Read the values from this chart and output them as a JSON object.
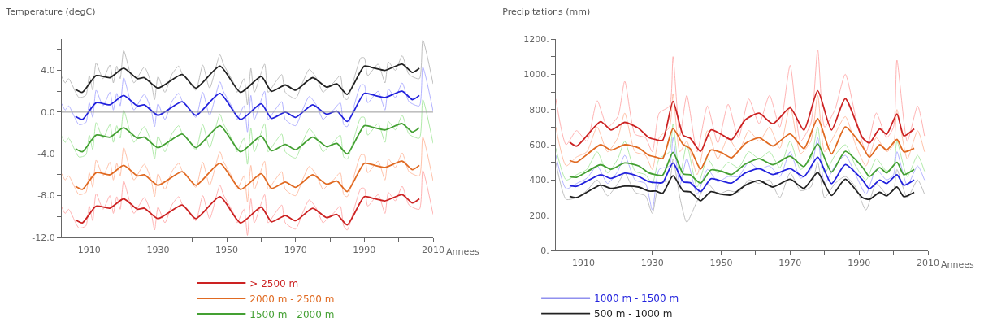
{
  "chart_data": [
    {
      "type": "line",
      "title": "Temperature (degC)",
      "xlabel": "Annees",
      "xlim": [
        1902,
        2010
      ],
      "ylim": [
        -12,
        7
      ],
      "xticks": [
        1910,
        {
          "value": 1920,
          "label": null
        },
        1930,
        {
          "value": 1940,
          "label": null
        },
        1950,
        {
          "value": 1960,
          "label": null
        },
        1970,
        {
          "value": 1980,
          "label": null
        },
        1990,
        {
          "value": 2000,
          "label": null
        },
        2010
      ],
      "yticks": [
        {
          "value": -12,
          "label": "-12.0"
        },
        {
          "value": -10,
          "label": null
        },
        {
          "value": -8,
          "label": "-8.0"
        },
        {
          "value": -6,
          "label": null
        },
        {
          "value": -4,
          "label": "-4.0"
        },
        {
          "value": -2,
          "label": null
        },
        {
          "value": 0,
          "label": "0.0"
        },
        {
          "value": 2,
          "label": null
        },
        {
          "value": 4,
          "label": "4.0"
        },
        {
          "value": 6,
          "label": null
        }
      ],
      "legend": "bottom",
      "ref_lines": [
        {
          "axis": "y",
          "value": 0,
          "color": "#999999"
        }
      ],
      "x": [
        1902,
        1903,
        1904,
        1907,
        1909,
        1910,
        1911,
        1912,
        1914,
        1916,
        1917,
        1918,
        1919,
        1920,
        1922,
        1923,
        1926,
        1928,
        1929,
        1930,
        1932,
        1934,
        1936,
        1937,
        1939,
        1941,
        1943,
        1945,
        1948,
        1949,
        1952,
        1953,
        1955,
        1956,
        1957,
        1958,
        1961,
        1962,
        1964,
        1966,
        1967,
        1970,
        1972,
        1974,
        1976,
        1978,
        1979,
        1981,
        1983,
        1984,
        1985,
        1989,
        1990,
        1991,
        1994,
        1996,
        1997,
        1999,
        2001,
        2003,
        2006,
        2007,
        2010
      ],
      "series": [
        {
          "color": "#b8b8b8",
          "values": [
            3.4,
            2.8,
            3.2,
            1.4,
            1.6,
            3.5,
            2.1,
            4.7,
            3.2,
            4.5,
            2.8,
            4.4,
            3.2,
            5.9,
            3.6,
            2.8,
            4.3,
            2.8,
            1.2,
            3.4,
            1.9,
            3.6,
            4.4,
            3.7,
            2.9,
            2.1,
            4.5,
            2.3,
            5.5,
            4.6,
            2.8,
            1.9,
            3.2,
            0.7,
            4.2,
            1.9,
            4.6,
            1.9,
            2.8,
            3.6,
            1.9,
            1.3,
            2.8,
            4.1,
            3.3,
            1.9,
            2.2,
            2.8,
            3.5,
            1.4,
            1.2,
            5.2,
            5.2,
            3.5,
            4.6,
            2.8,
            4.8,
            4.0,
            5.4,
            3.6,
            3.2,
            6.9,
            2.7
          ]
        },
        {
          "color": "#aaaaff",
          "values": [
            0.8,
            0.2,
            0.6,
            -1.2,
            -1.0,
            0.9,
            -0.5,
            2.1,
            0.6,
            1.9,
            0.2,
            1.8,
            0.6,
            3.3,
            1.0,
            0.2,
            1.7,
            0.2,
            -1.4,
            0.8,
            -0.7,
            1.0,
            1.8,
            1.1,
            0.3,
            -0.5,
            1.9,
            -0.3,
            2.9,
            2.0,
            0.2,
            -0.7,
            0.6,
            -1.9,
            1.6,
            -0.7,
            2.0,
            -0.7,
            0.2,
            1.0,
            -0.7,
            -1.3,
            0.2,
            1.5,
            0.7,
            -0.7,
            -0.4,
            0.2,
            0.9,
            -1.2,
            -1.4,
            2.6,
            2.6,
            0.9,
            2.0,
            0.2,
            2.2,
            1.4,
            2.8,
            1.0,
            0.6,
            4.3,
            0.1
          ]
        },
        {
          "color": "#a8e8a0",
          "values": [
            -2.3,
            -2.9,
            -2.5,
            -4.3,
            -4.1,
            -2.2,
            -3.6,
            -1.0,
            -2.5,
            -1.2,
            -2.9,
            -1.3,
            -2.5,
            0.2,
            -2.1,
            -2.9,
            -1.4,
            -2.9,
            -4.5,
            -2.3,
            -3.8,
            -2.1,
            -1.3,
            -2.0,
            -2.8,
            -3.6,
            -1.2,
            -3.4,
            -0.2,
            -1.1,
            -2.9,
            -3.8,
            -2.5,
            -5.0,
            -1.5,
            -3.8,
            -1.1,
            -3.8,
            -2.9,
            -2.1,
            -3.8,
            -4.4,
            -2.9,
            -1.6,
            -2.4,
            -3.8,
            -3.5,
            -2.9,
            -2.2,
            -4.3,
            -4.5,
            -0.5,
            -0.5,
            -2.2,
            -1.1,
            -2.9,
            -0.9,
            -1.7,
            -0.3,
            -2.1,
            -2.5,
            1.2,
            -3.0
          ]
        },
        {
          "color": "#ffbba0",
          "values": [
            -5.9,
            -6.5,
            -6.1,
            -7.9,
            -7.7,
            -5.8,
            -7.2,
            -4.6,
            -6.1,
            -4.8,
            -6.5,
            -4.9,
            -6.1,
            -3.4,
            -5.7,
            -6.5,
            -5.0,
            -6.5,
            -8.1,
            -5.9,
            -7.4,
            -5.7,
            -4.9,
            -5.6,
            -6.4,
            -7.2,
            -4.8,
            -7.0,
            -3.8,
            -4.7,
            -6.5,
            -7.4,
            -6.1,
            -8.6,
            -5.1,
            -7.4,
            -4.7,
            -7.4,
            -6.5,
            -5.7,
            -7.4,
            -8.0,
            -6.5,
            -5.2,
            -6.0,
            -7.4,
            -7.1,
            -6.5,
            -5.8,
            -7.9,
            -8.1,
            -4.1,
            -4.1,
            -5.8,
            -4.7,
            -6.5,
            -4.5,
            -5.3,
            -3.9,
            -5.7,
            -6.1,
            -2.4,
            -6.6
          ]
        },
        {
          "color": "#ffaaaa",
          "values": [
            -9.1,
            -9.7,
            -9.3,
            -11.1,
            -10.9,
            -9.0,
            -10.4,
            -7.8,
            -9.3,
            -8.0,
            -9.7,
            -8.1,
            -9.3,
            -6.6,
            -8.9,
            -9.7,
            -8.2,
            -9.7,
            -11.3,
            -9.1,
            -10.6,
            -8.9,
            -8.1,
            -8.8,
            -9.6,
            -10.4,
            -8.0,
            -10.2,
            -7.0,
            -7.9,
            -9.7,
            -10.6,
            -9.3,
            -11.8,
            -8.3,
            -10.6,
            -7.9,
            -10.6,
            -9.7,
            -8.9,
            -10.6,
            -11.2,
            -9.7,
            -8.4,
            -9.2,
            -10.6,
            -10.3,
            -9.7,
            -9.0,
            -10.9,
            -11.3,
            -7.3,
            -7.3,
            -9.0,
            -7.9,
            -9.7,
            -7.7,
            -8.5,
            -7.1,
            -8.9,
            -9.3,
            -5.6,
            -9.8
          ]
        },
        {
          "name": "> 2500 m",
          "color": "#cc2222",
          "x": [
            1906,
            1908,
            1912,
            1916,
            1920,
            1924,
            1926,
            1930,
            1937,
            1941,
            1948,
            1954,
            1960,
            1963,
            1967,
            1970,
            1975,
            1979,
            1982,
            1985,
            1990,
            1993,
            1996,
            2001,
            2004,
            2006
          ],
          "values": [
            -10.3,
            -10.6,
            -9.0,
            -9.2,
            -8.3,
            -9.3,
            -9.2,
            -10.2,
            -8.9,
            -10.2,
            -8.1,
            -10.6,
            -9.1,
            -10.5,
            -9.9,
            -10.4,
            -9.2,
            -10.1,
            -9.8,
            -10.8,
            -8.1,
            -8.3,
            -8.5,
            -7.9,
            -8.7,
            -8.3
          ]
        },
        {
          "name": "2000 m - 2500 m",
          "color": "#e06a22",
          "x": [
            1906,
            1908,
            1912,
            1916,
            1920,
            1924,
            1926,
            1930,
            1937,
            1941,
            1948,
            1954,
            1960,
            1963,
            1967,
            1970,
            1975,
            1979,
            1982,
            1985,
            1990,
            1993,
            1996,
            2001,
            2004,
            2006
          ],
          "values": [
            -7.1,
            -7.4,
            -5.8,
            -6.0,
            -5.1,
            -6.1,
            -6.0,
            -7.0,
            -5.7,
            -7.0,
            -4.9,
            -7.4,
            -5.9,
            -7.3,
            -6.7,
            -7.2,
            -6.0,
            -6.9,
            -6.6,
            -7.6,
            -4.9,
            -5.1,
            -5.3,
            -4.7,
            -5.5,
            -5.1
          ]
        },
        {
          "name": "1500 m - 2000 m",
          "color": "#44a033",
          "x": [
            1906,
            1908,
            1912,
            1916,
            1920,
            1924,
            1926,
            1930,
            1937,
            1941,
            1948,
            1954,
            1960,
            1963,
            1967,
            1970,
            1975,
            1979,
            1982,
            1985,
            1990,
            1993,
            1996,
            2001,
            2004,
            2006
          ],
          "values": [
            -3.5,
            -3.8,
            -2.2,
            -2.4,
            -1.5,
            -2.5,
            -2.4,
            -3.4,
            -2.1,
            -3.4,
            -1.3,
            -3.8,
            -2.3,
            -3.7,
            -3.1,
            -3.6,
            -2.4,
            -3.3,
            -3.0,
            -4.0,
            -1.3,
            -1.5,
            -1.7,
            -1.1,
            -1.9,
            -1.5
          ]
        },
        {
          "color": "#2222dd",
          "x": [
            1906,
            1908,
            1912,
            1916,
            1920,
            1924,
            1926,
            1930,
            1937,
            1941,
            1948,
            1954,
            1960,
            1963,
            1967,
            1970,
            1975,
            1979,
            1982,
            1985,
            1990,
            1993,
            1996,
            2001,
            2004,
            2006
          ],
          "values": [
            -0.4,
            -0.7,
            0.9,
            0.7,
            1.6,
            0.6,
            0.7,
            -0.3,
            1.0,
            -0.3,
            1.8,
            -0.7,
            0.8,
            -0.6,
            0.0,
            -0.5,
            0.7,
            -0.2,
            0.1,
            -0.9,
            1.8,
            1.6,
            1.4,
            2.0,
            1.2,
            1.6
          ]
        },
        {
          "color": "#222222",
          "x": [
            1906,
            1908,
            1912,
            1916,
            1920,
            1924,
            1926,
            1930,
            1937,
            1941,
            1948,
            1954,
            1960,
            1963,
            1967,
            1970,
            1975,
            1979,
            1982,
            1985,
            1990,
            1993,
            1996,
            2001,
            2004,
            2006
          ],
          "values": [
            2.2,
            1.9,
            3.5,
            3.3,
            4.2,
            3.2,
            3.3,
            2.3,
            3.6,
            2.3,
            4.4,
            1.9,
            3.4,
            2.0,
            2.6,
            2.1,
            3.3,
            2.4,
            2.7,
            1.7,
            4.4,
            4.2,
            4.0,
            4.6,
            3.8,
            4.2
          ]
        }
      ]
    },
    {
      "type": "line",
      "title": "Precipitations (mm)",
      "xlabel": "Annees",
      "xlim": [
        1902,
        2010
      ],
      "ylim": [
        0,
        1200
      ],
      "xticks": [
        1910,
        {
          "value": 1920,
          "label": null
        },
        1930,
        {
          "value": 1940,
          "label": null
        },
        1950,
        {
          "value": 1960,
          "label": null
        },
        1970,
        {
          "value": 1980,
          "label": null
        },
        1990,
        {
          "value": 2000,
          "label": null
        },
        2010
      ],
      "yticks": [
        {
          "value": 0,
          "label": "0."
        },
        {
          "value": 100,
          "label": null
        },
        {
          "value": 200,
          "label": "200."
        },
        {
          "value": 300,
          "label": null
        },
        {
          "value": 400,
          "label": "400."
        },
        {
          "value": 500,
          "label": null
        },
        {
          "value": 600,
          "label": "600."
        },
        {
          "value": 700,
          "label": null
        },
        {
          "value": 800,
          "label": "800."
        },
        {
          "value": 900,
          "label": null
        },
        {
          "value": 1000,
          "label": "1000."
        },
        {
          "value": 1100,
          "label": null
        },
        {
          "value": 1200,
          "label": "1200."
        }
      ],
      "legend": "bottom left",
      "x": [
        1902,
        1905,
        1908,
        1911,
        1914,
        1917,
        1920,
        1922,
        1925,
        1928,
        1930,
        1932,
        1935,
        1936,
        1938,
        1940,
        1943,
        1946,
        1949,
        1952,
        1955,
        1958,
        1961,
        1964,
        1967,
        1970,
        1973,
        1976,
        1978,
        1980,
        1983,
        1986,
        1989,
        1992,
        1995,
        1998,
        2000,
        2001,
        2004,
        2007,
        2009
      ],
      "series": [
        {
          "color": "#ffaaaa",
          "values": [
            860,
            600,
            680,
            620,
            850,
            700,
            760,
            960,
            660,
            640,
            560,
            780,
            820,
            1100,
            650,
            880,
            560,
            820,
            610,
            830,
            640,
            860,
            720,
            880,
            700,
            1050,
            620,
            720,
            1140,
            700,
            800,
            1000,
            760,
            560,
            780,
            640,
            700,
            1080,
            620,
            820,
            650
          ]
        },
        {
          "color": "#ffbba0",
          "values": [
            700,
            480,
            530,
            560,
            700,
            560,
            640,
            780,
            560,
            540,
            460,
            640,
            700,
            890,
            560,
            620,
            430,
            680,
            520,
            640,
            560,
            680,
            620,
            700,
            580,
            820,
            550,
            620,
            880,
            560,
            660,
            760,
            600,
            480,
            640,
            560,
            600,
            800,
            520,
            680,
            560
          ]
        },
        {
          "color": "#a8e8a0",
          "values": [
            580,
            400,
            430,
            460,
            560,
            440,
            520,
            620,
            450,
            430,
            380,
            520,
            560,
            720,
            420,
            600,
            360,
            520,
            440,
            500,
            470,
            560,
            520,
            560,
            470,
            620,
            460,
            520,
            700,
            440,
            540,
            600,
            480,
            400,
            520,
            450,
            480,
            620,
            420,
            540,
            450
          ]
        },
        {
          "color": "#aaaaff",
          "values": [
            540,
            350,
            380,
            410,
            480,
            380,
            450,
            540,
            400,
            380,
            230,
            460,
            480,
            640,
            370,
            520,
            320,
            460,
            390,
            420,
            420,
            500,
            460,
            480,
            420,
            560,
            410,
            460,
            640,
            380,
            480,
            540,
            430,
            320,
            460,
            400,
            430,
            560,
            370,
            480,
            400
          ]
        },
        {
          "color": "#b8b8b8",
          "values": [
            500,
            290,
            300,
            340,
            400,
            310,
            380,
            440,
            330,
            310,
            210,
            380,
            400,
            520,
            300,
            160,
            280,
            380,
            320,
            340,
            330,
            400,
            380,
            400,
            300,
            440,
            340,
            360,
            500,
            300,
            380,
            420,
            360,
            230,
            380,
            320,
            340,
            460,
            300,
            400,
            320
          ]
        },
        {
          "color": "#cc2222",
          "x": [
            1906,
            1908,
            1915,
            1918,
            1922,
            1926,
            1929,
            1931,
            1933,
            1936,
            1939,
            1941,
            1944,
            1947,
            1950,
            1953,
            1957,
            1961,
            1965,
            1970,
            1974,
            1978,
            1982,
            1986,
            1991,
            1993,
            1996,
            1998,
            2001,
            2003,
            2006
          ],
          "values": [
            615,
            592,
            731,
            684,
            727,
            693,
            640,
            629,
            625,
            846,
            652,
            637,
            562,
            684,
            659,
            629,
            742,
            779,
            719,
            809,
            683,
            906,
            684,
            862,
            640,
            610,
            690,
            660,
            775,
            650,
            690
          ]
        },
        {
          "color": "#e06a22",
          "x": [
            1906,
            1908,
            1915,
            1918,
            1922,
            1926,
            1929,
            1931,
            1933,
            1936,
            1939,
            1941,
            1944,
            1947,
            1950,
            1953,
            1957,
            1961,
            1965,
            1970,
            1974,
            1978,
            1982,
            1986,
            1991,
            1993,
            1996,
            1998,
            2001,
            2003,
            2006
          ],
          "values": [
            511,
            501,
            600,
            570,
            600,
            582,
            540,
            530,
            522,
            692,
            600,
            578,
            462,
            570,
            556,
            526,
            607,
            640,
            593,
            662,
            578,
            748,
            548,
            701,
            590,
            530,
            600,
            570,
            630,
            560,
            580
          ]
        },
        {
          "color": "#44a033",
          "x": [
            1906,
            1908,
            1915,
            1918,
            1922,
            1926,
            1929,
            1931,
            1933,
            1936,
            1939,
            1941,
            1944,
            1947,
            1950,
            1953,
            1957,
            1961,
            1965,
            1970,
            1974,
            1978,
            1982,
            1986,
            1991,
            1993,
            1996,
            1998,
            2001,
            2003,
            2006
          ],
          "values": [
            419,
            415,
            487,
            461,
            497,
            480,
            440,
            430,
            427,
            557,
            434,
            430,
            382,
            457,
            450,
            431,
            490,
            521,
            487,
            535,
            476,
            604,
            445,
            562,
            472,
            420,
            470,
            440,
            500,
            430,
            460
          ]
        },
        {
          "name": "1000 m - 1500 m",
          "color": "#2222dd",
          "x": [
            1906,
            1908,
            1915,
            1918,
            1922,
            1926,
            1929,
            1931,
            1933,
            1936,
            1939,
            1941,
            1944,
            1947,
            1950,
            1953,
            1957,
            1961,
            1965,
            1970,
            1974,
            1978,
            1982,
            1986,
            1991,
            1993,
            1996,
            1998,
            2001,
            2003,
            2006
          ],
          "values": [
            367,
            364,
            430,
            409,
            439,
            420,
            390,
            385,
            385,
            497,
            389,
            385,
            334,
            407,
            395,
            382,
            440,
            464,
            431,
            464,
            419,
            529,
            379,
            487,
            400,
            350,
            400,
            380,
            430,
            370,
            400
          ]
        },
        {
          "name": "500 m - 1000 m",
          "color": "#222222",
          "x": [
            1906,
            1908,
            1915,
            1918,
            1922,
            1926,
            1929,
            1931,
            1933,
            1936,
            1939,
            1941,
            1944,
            1947,
            1950,
            1953,
            1957,
            1961,
            1965,
            1970,
            1974,
            1978,
            1982,
            1986,
            1991,
            1993,
            1996,
            1998,
            2001,
            2003,
            2006
          ],
          "values": [
            307,
            300,
            371,
            352,
            365,
            360,
            337,
            337,
            325,
            424,
            337,
            333,
            282,
            334,
            319,
            315,
            370,
            397,
            360,
            404,
            352,
            442,
            312,
            404,
            300,
            290,
            330,
            310,
            360,
            305,
            330
          ]
        }
      ]
    }
  ]
}
